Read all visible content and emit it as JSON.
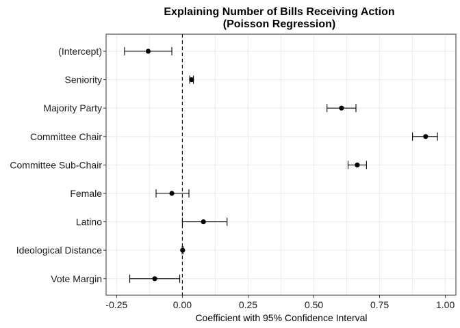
{
  "chart_data": {
    "type": "scatter",
    "subtype": "coefficient-plot-with-error-bars",
    "title": "Explaining Number of Bills Receiving Action",
    "subtitle": "(Poisson Regression)",
    "xlabel": "Coefficient with 95% Confidence Interval",
    "ylabel": "",
    "xlim": [
      -0.29,
      1.04
    ],
    "x_ticks": [
      -0.25,
      0.0,
      0.25,
      0.5,
      0.75,
      1.0
    ],
    "x_tick_labels": [
      "-0.25",
      "0.00",
      "0.25",
      "0.50",
      "0.75",
      "1.00"
    ],
    "reference_line_x": 0,
    "grid": true,
    "legend": "none",
    "points": [
      {
        "label": "(Intercept)",
        "estimate": -0.13,
        "lower": -0.22,
        "upper": -0.04
      },
      {
        "label": "Seniority",
        "estimate": 0.035,
        "lower": 0.028,
        "upper": 0.042
      },
      {
        "label": "Majority Party",
        "estimate": 0.605,
        "lower": 0.55,
        "upper": 0.66
      },
      {
        "label": "Committee Chair",
        "estimate": 0.925,
        "lower": 0.875,
        "upper": 0.97
      },
      {
        "label": "Committee Sub-Chair",
        "estimate": 0.665,
        "lower": 0.63,
        "upper": 0.7
      },
      {
        "label": "Female",
        "estimate": -0.04,
        "lower": -0.1,
        "upper": 0.025
      },
      {
        "label": "Latino",
        "estimate": 0.08,
        "lower": 0.0,
        "upper": 0.17
      },
      {
        "label": "Ideological Distance",
        "estimate": 0.001,
        "lower": -0.001,
        "upper": 0.003
      },
      {
        "label": "Vote Margin",
        "estimate": -0.105,
        "lower": -0.2,
        "upper": -0.01
      }
    ]
  }
}
